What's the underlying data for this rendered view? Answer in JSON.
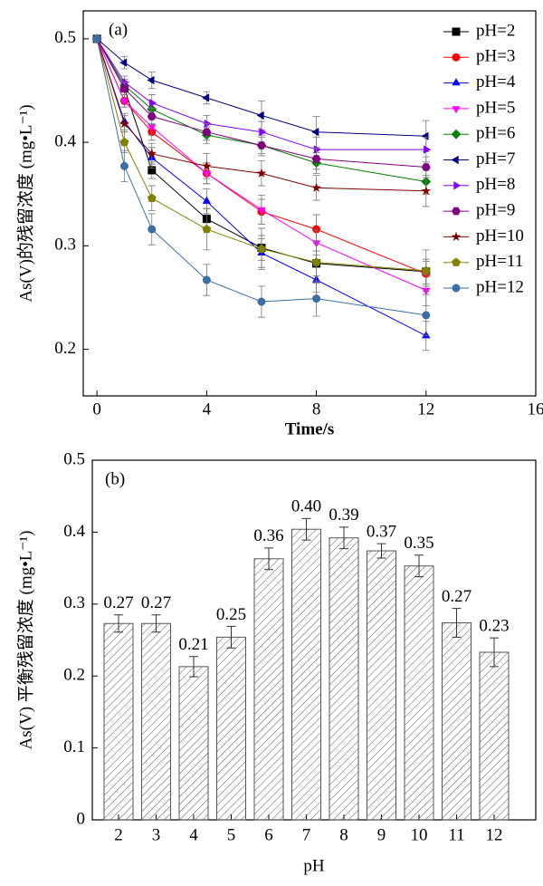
{
  "chart_data": [
    {
      "type": "line",
      "annotation": "(a)",
      "x_label": "Time/s",
      "y_label": "As(V)的残留浓度 (mg•L⁻¹)",
      "x": [
        0,
        1,
        2,
        4,
        6,
        8,
        12
      ],
      "xlim": [
        -0.5,
        16
      ],
      "xticks": [
        0,
        4,
        8,
        12,
        16
      ],
      "ylim": [
        0.155,
        0.527
      ],
      "yticks": [
        0.2,
        0.3,
        0.4,
        0.5
      ],
      "legend": "upper right",
      "series": [
        {
          "name": "pH=2",
          "color": "#000000",
          "marker": "square",
          "values": [
            0.5,
            0.452,
            0.373,
            0.326,
            0.298,
            0.283,
            0.275
          ],
          "errors": [
            0,
            0.006,
            0.008,
            0.01,
            0.012,
            0.012,
            0.012
          ]
        },
        {
          "name": "pH=3",
          "color": "#ff0000",
          "marker": "circle",
          "values": [
            0.5,
            0.44,
            0.41,
            0.37,
            0.333,
            0.316,
            0.273
          ],
          "errors": [
            0,
            0.006,
            0.008,
            0.01,
            0.012,
            0.014,
            0.012
          ]
        },
        {
          "name": "pH=4",
          "color": "#0000ff",
          "marker": "triangle-up",
          "values": [
            0.5,
            0.42,
            0.385,
            0.343,
            0.293,
            0.267,
            0.213
          ],
          "errors": [
            0,
            0.008,
            0.01,
            0.012,
            0.014,
            0.012,
            0.014
          ]
        },
        {
          "name": "pH=5",
          "color": "#ff00ff",
          "marker": "triangle-down",
          "values": [
            0.5,
            0.44,
            0.415,
            0.37,
            0.335,
            0.303,
            0.257
          ],
          "errors": [
            0,
            0.006,
            0.008,
            0.01,
            0.014,
            0.012,
            0.015
          ]
        },
        {
          "name": "pH=6",
          "color": "#008000",
          "marker": "diamond",
          "values": [
            0.5,
            0.455,
            0.432,
            0.407,
            0.397,
            0.38,
            0.362
          ],
          "errors": [
            0,
            0.006,
            0.006,
            0.008,
            0.01,
            0.01,
            0.012
          ]
        },
        {
          "name": "pH=7",
          "color": "#000080",
          "marker": "triangle-left",
          "values": [
            0.5,
            0.477,
            0.46,
            0.443,
            0.426,
            0.41,
            0.406
          ],
          "errors": [
            0,
            0.006,
            0.008,
            0.006,
            0.014,
            0.015,
            0.015
          ]
        },
        {
          "name": "pH=8",
          "color": "#8000ff",
          "marker": "triangle-right",
          "values": [
            0.5,
            0.458,
            0.438,
            0.418,
            0.41,
            0.393,
            0.393
          ],
          "errors": [
            0,
            0.006,
            0.008,
            0.008,
            0.01,
            0.012,
            0.012
          ]
        },
        {
          "name": "pH=9",
          "color": "#800080",
          "marker": "hexagon",
          "values": [
            0.5,
            0.452,
            0.425,
            0.41,
            0.397,
            0.384,
            0.376
          ],
          "errors": [
            0,
            0.006,
            0.008,
            0.008,
            0.008,
            0.01,
            0.01
          ]
        },
        {
          "name": "pH=10",
          "color": "#800000",
          "marker": "star",
          "values": [
            0.5,
            0.418,
            0.389,
            0.377,
            0.37,
            0.356,
            0.353
          ],
          "errors": [
            0,
            0.008,
            0.01,
            0.012,
            0.012,
            0.012,
            0.015
          ]
        },
        {
          "name": "pH=11",
          "color": "#808000",
          "marker": "pentagon",
          "values": [
            0.5,
            0.4,
            0.346,
            0.316,
            0.297,
            0.284,
            0.276
          ],
          "errors": [
            0,
            0.01,
            0.012,
            0.02,
            0.02,
            0.02,
            0.02
          ]
        },
        {
          "name": "pH=12",
          "color": "#3a6ea5",
          "marker": "circle",
          "values": [
            0.5,
            0.377,
            0.316,
            0.267,
            0.246,
            0.249,
            0.233
          ],
          "errors": [
            0,
            0.015,
            0.015,
            0.015,
            0.015,
            0.017,
            0.02
          ]
        }
      ]
    },
    {
      "type": "bar",
      "annotation": "(b)",
      "x_label": "pH",
      "y_label": "As(V) 平衡残留浓度 (mg•L⁻¹)",
      "categories": [
        "2",
        "3",
        "4",
        "5",
        "6",
        "7",
        "8",
        "9",
        "10",
        "11",
        "12"
      ],
      "values": [
        0.273,
        0.273,
        0.213,
        0.254,
        0.363,
        0.404,
        0.392,
        0.374,
        0.353,
        0.274,
        0.233
      ],
      "value_labels": [
        "0.27",
        "0.27",
        "0.21",
        "0.25",
        "0.36",
        "0.40",
        "0.39",
        "0.37",
        "0.35",
        "0.27",
        "0.23"
      ],
      "errors": [
        0.012,
        0.012,
        0.014,
        0.015,
        0.015,
        0.015,
        0.015,
        0.01,
        0.015,
        0.02,
        0.02
      ],
      "color": "#555555",
      "hatch": true,
      "ylim": [
        0,
        0.5
      ],
      "yticks": [
        0,
        0.1,
        0.2,
        0.3,
        0.4,
        0.5
      ]
    }
  ]
}
